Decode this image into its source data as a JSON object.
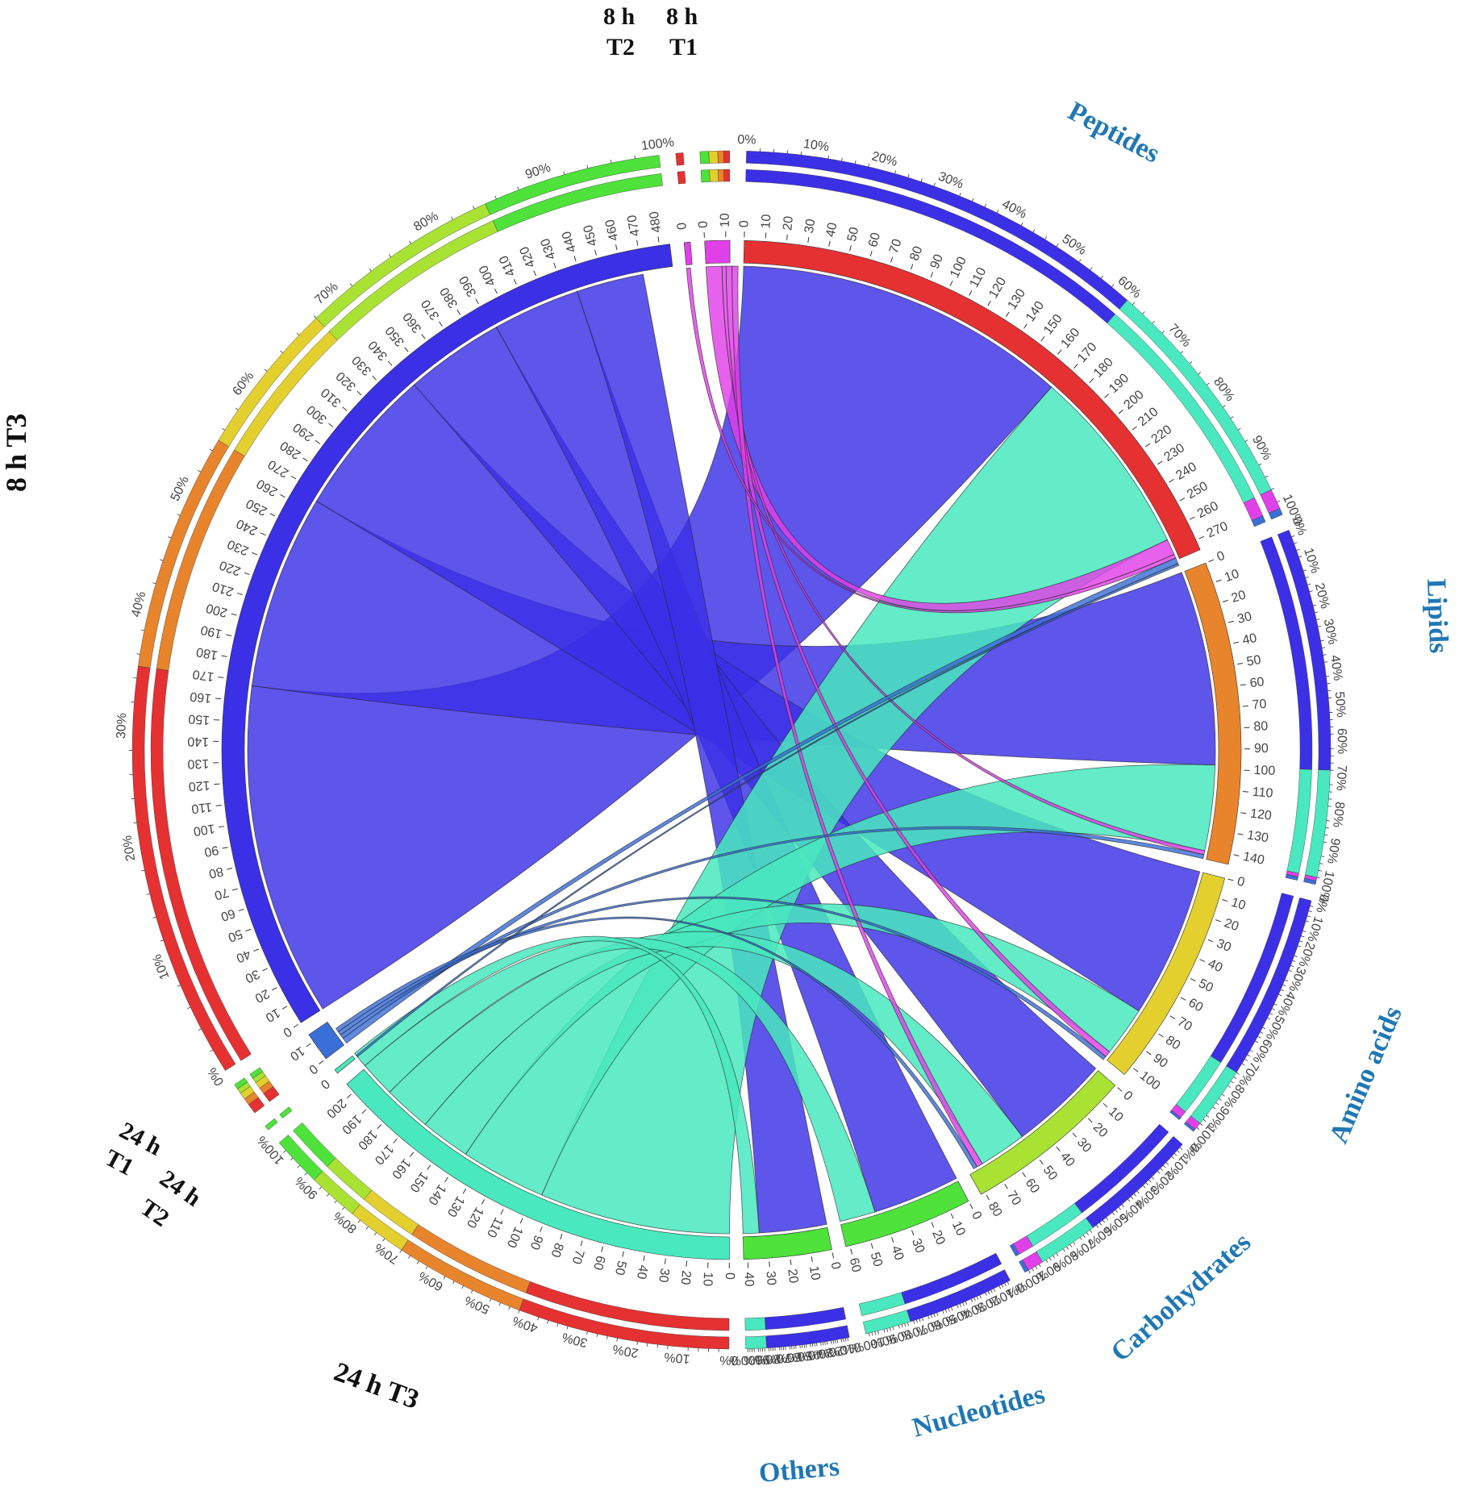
{
  "labels": {
    "peptides": "Peptides",
    "lipids": "Lipids",
    "amino_acids": "Amino acids",
    "carbohydrates": "Carbohydrates",
    "nucleotides": "Nucleotides",
    "others": "Others",
    "t8h_t3": "8 h T3",
    "t8h_t1_line1": "8 h",
    "t8h_t1_line2": "T1",
    "t8h_t2_line1": "8 h",
    "t8h_t2_line2": "T2",
    "t24h_t1_line1": "24 h",
    "t24h_t1_line2": "T1",
    "t24h_t2_line1": "24 h",
    "t24h_t2_line2": "T2",
    "t24h_t3": "24 h T3"
  },
  "colors": {
    "blue": "#3b30e6",
    "teal": "#49e8be",
    "magenta": "#e040e8",
    "red": "#e53131",
    "orange": "#e8842c",
    "yellow": "#e3cf2d",
    "yellowgreen": "#a9e233",
    "green": "#4ee23a",
    "steel": "#3a6fd8",
    "label_blue": "#1f77b4"
  },
  "chart_data": {
    "type": "chord",
    "groups": [
      {
        "name": "Peptides",
        "size": 275,
        "tick_step": 10,
        "color": "red",
        "composition": [
          [
            "blue",
            0.61
          ],
          [
            "teal",
            0.35
          ],
          [
            "magenta",
            0.03
          ],
          [
            "steel",
            0.01
          ]
        ]
      },
      {
        "name": "Lipids",
        "size": 145,
        "tick_step": 10,
        "color": "orange",
        "composition": [
          [
            "blue",
            0.68
          ],
          [
            "teal",
            0.3
          ],
          [
            "magenta",
            0.01
          ],
          [
            "steel",
            0.01
          ]
        ]
      },
      {
        "name": "Amino acids",
        "size": 105,
        "tick_step": 10,
        "color": "yellow",
        "composition": [
          [
            "blue",
            0.72
          ],
          [
            "teal",
            0.24
          ],
          [
            "magenta",
            0.03
          ],
          [
            "steel",
            0.01
          ]
        ]
      },
      {
        "name": "Carbohydrates",
        "size": 82,
        "tick_step": 10,
        "color": "yellowgreen",
        "composition": [
          [
            "blue",
            0.6
          ],
          [
            "teal",
            0.3
          ],
          [
            "magenta",
            0.08
          ],
          [
            "steel",
            0.02
          ]
        ]
      },
      {
        "name": "Nucleotides",
        "size": 62,
        "tick_step": 10,
        "color": "green",
        "composition": [
          [
            "blue",
            0.7
          ],
          [
            "teal",
            0.3
          ]
        ]
      },
      {
        "name": "Others",
        "size": 42,
        "tick_step": 10,
        "color": "green",
        "composition": [
          [
            "blue",
            0.8
          ],
          [
            "teal",
            0.2
          ]
        ]
      },
      {
        "name": "24 h T3",
        "size": 205,
        "tick_step": 10,
        "color": "teal",
        "composition": [
          [
            "red",
            0.42
          ],
          [
            "orange",
            0.26
          ],
          [
            "yellow",
            0.12
          ],
          [
            "yellowgreen",
            0.1
          ],
          [
            "green",
            0.1
          ]
        ]
      },
      {
        "name": "24 h T2",
        "size": 2,
        "tick_step": 10,
        "color": "teal",
        "composition": [
          [
            "green",
            1.0
          ]
        ]
      },
      {
        "name": "24 h T1",
        "size": 14,
        "tick_step": 10,
        "color": "steel",
        "composition": [
          [
            "red",
            0.3
          ],
          [
            "orange",
            0.2
          ],
          [
            "yellow",
            0.2
          ],
          [
            "yellowgreen",
            0.15
          ],
          [
            "green",
            0.15
          ]
        ]
      },
      {
        "name": "8 h T3",
        "size": 485,
        "tick_step": 10,
        "color": "blue",
        "composition": [
          [
            "red",
            0.35
          ],
          [
            "orange",
            0.2
          ],
          [
            "yellow",
            0.13
          ],
          [
            "yellowgreen",
            0.17
          ],
          [
            "green",
            0.15
          ]
        ]
      },
      {
        "name": "8 h T2",
        "size": 3,
        "tick_step": 10,
        "color": "magenta",
        "composition": [
          [
            "red",
            1.0
          ]
        ]
      },
      {
        "name": "8 h T1",
        "size": 12,
        "tick_step": 10,
        "color": "magenta",
        "composition": [
          [
            "green",
            0.3
          ],
          [
            "yellow",
            0.3
          ],
          [
            "orange",
            0.2
          ],
          [
            "red",
            0.2
          ]
        ]
      }
    ],
    "ribbons": [
      {
        "source": "8 h T3",
        "target": "Peptides",
        "value": 168,
        "color": "blue"
      },
      {
        "source": "8 h T3",
        "target": "Lipids",
        "value": 98,
        "color": "blue"
      },
      {
        "source": "8 h T3",
        "target": "Amino acids",
        "value": 76,
        "color": "blue"
      },
      {
        "source": "8 h T3",
        "target": "Carbohydrates",
        "value": 50,
        "color": "blue"
      },
      {
        "source": "8 h T3",
        "target": "Nucleotides",
        "value": 44,
        "color": "blue"
      },
      {
        "source": "8 h T3",
        "target": "Others",
        "value": 34,
        "color": "blue"
      },
      {
        "source": "24 h T3",
        "target": "Peptides",
        "value": 96,
        "color": "teal"
      },
      {
        "source": "24 h T3",
        "target": "Lipids",
        "value": 43,
        "color": "teal"
      },
      {
        "source": "24 h T3",
        "target": "Amino acids",
        "value": 25,
        "color": "teal"
      },
      {
        "source": "24 h T3",
        "target": "Carbohydrates",
        "value": 24,
        "color": "teal"
      },
      {
        "source": "24 h T3",
        "target": "Nucleotides",
        "value": 18,
        "color": "teal"
      },
      {
        "source": "24 h T3",
        "target": "Others",
        "value": 8,
        "color": "teal"
      },
      {
        "source": "8 h T1",
        "target": "Peptides",
        "value": 8,
        "color": "magenta"
      },
      {
        "source": "8 h T1",
        "target": "Lipids",
        "value": 2,
        "color": "magenta"
      },
      {
        "source": "8 h T1",
        "target": "Amino acids",
        "value": 3,
        "color": "magenta"
      },
      {
        "source": "8 h T1",
        "target": "Carbohydrates",
        "value": 3,
        "color": "magenta"
      },
      {
        "source": "8 h T2",
        "target": "Peptides",
        "value": 2,
        "color": "magenta"
      },
      {
        "source": "24 h T1",
        "target": "Peptides",
        "value": 3,
        "color": "steel"
      },
      {
        "source": "24 h T1",
        "target": "Lipids",
        "value": 2,
        "color": "steel"
      },
      {
        "source": "24 h T1",
        "target": "Amino acids",
        "value": 2,
        "color": "steel"
      },
      {
        "source": "24 h T1",
        "target": "Carbohydrates",
        "value": 2,
        "color": "steel"
      },
      {
        "source": "24 h T2",
        "target": "Peptides",
        "value": 1,
        "color": "steel"
      }
    ]
  }
}
